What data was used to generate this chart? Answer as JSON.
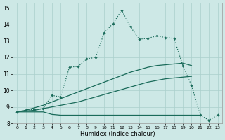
{
  "xlabel": "Humidex (Indice chaleur)",
  "bg_color": "#cde8e6",
  "grid_color": "#aacfcc",
  "line_color": "#1a6b5a",
  "x_values": [
    0,
    1,
    2,
    3,
    4,
    5,
    6,
    7,
    8,
    9,
    10,
    11,
    12,
    13,
    14,
    15,
    16,
    17,
    18,
    19,
    20,
    21,
    22,
    23
  ],
  "line_main": [
    8.7,
    8.8,
    8.85,
    8.9,
    9.7,
    9.6,
    11.4,
    11.45,
    11.9,
    12.0,
    13.5,
    14.05,
    14.85,
    13.85,
    13.1,
    13.15,
    13.3,
    13.2,
    13.15,
    11.5,
    10.3,
    8.5,
    8.2,
    8.5
  ],
  "line_flat": [
    8.7,
    8.7,
    8.7,
    8.7,
    8.55,
    8.5,
    8.5,
    8.5,
    8.5,
    8.5,
    8.5,
    8.5,
    8.5,
    8.5,
    8.5,
    8.5,
    8.5,
    8.5,
    8.5,
    8.5,
    8.5,
    8.5,
    null,
    null
  ],
  "line_rise1": [
    8.7,
    8.75,
    8.8,
    8.9,
    9.0,
    9.1,
    9.2,
    9.3,
    9.45,
    9.6,
    9.75,
    9.9,
    10.05,
    10.2,
    10.35,
    10.5,
    10.6,
    10.7,
    10.75,
    10.8,
    10.85,
    null,
    null,
    null
  ],
  "line_rise2": [
    8.7,
    8.8,
    8.95,
    9.1,
    9.3,
    9.5,
    9.7,
    9.9,
    10.1,
    10.3,
    10.5,
    10.7,
    10.9,
    11.1,
    11.25,
    11.4,
    11.5,
    11.55,
    11.6,
    11.65,
    11.5,
    null,
    null,
    null
  ],
  "ylim": [
    8.0,
    15.3
  ],
  "xlim": [
    -0.5,
    23.5
  ],
  "yticks": [
    8,
    9,
    10,
    11,
    12,
    13,
    14,
    15
  ],
  "xticks": [
    0,
    1,
    2,
    3,
    4,
    5,
    6,
    7,
    8,
    9,
    10,
    11,
    12,
    13,
    14,
    15,
    16,
    17,
    18,
    19,
    20,
    21,
    22,
    23
  ]
}
